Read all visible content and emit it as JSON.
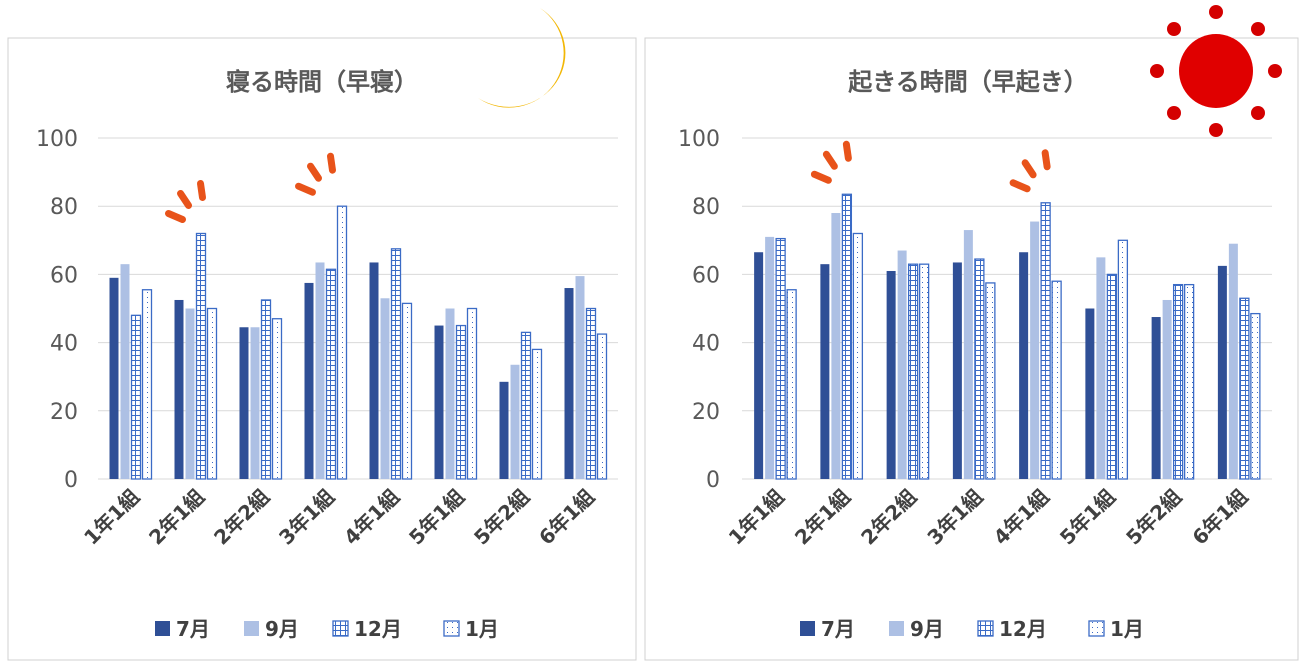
{
  "colors": {
    "jul": "#2F4F96",
    "sep": "#ADC0E4",
    "dec": "#3B6BC6",
    "jan": "#3B6BC6",
    "grid": "#D9D9D9",
    "frame": "#D0D0D0",
    "moon": "#F2B705",
    "sun": "#E00000",
    "sun_dots": "#D40000",
    "emphasis": "#E8531A"
  },
  "icons": {
    "left_decoration": "crescent-moon-icon",
    "right_decoration": "sun-icon",
    "emphasis_mark": "emphasis-dashes-icon"
  },
  "chart_data": [
    {
      "type": "bar",
      "title": "寝る時間（早寝）",
      "categories": [
        "1年1組",
        "2年1組",
        "2年2組",
        "3年1組",
        "4年1組",
        "5年1組",
        "5年2組",
        "6年1組"
      ],
      "series": [
        {
          "name": "7月",
          "values": [
            59,
            52.5,
            44.5,
            57.5,
            63.5,
            45,
            28.5,
            56
          ]
        },
        {
          "name": "9月",
          "values": [
            63,
            50,
            44.5,
            63.5,
            53,
            50,
            33.5,
            59.5
          ]
        },
        {
          "name": "12月",
          "values": [
            48,
            72,
            52.5,
            61.5,
            67.5,
            45,
            43,
            50
          ]
        },
        {
          "name": "1月",
          "values": [
            55.5,
            50,
            47,
            80,
            51.5,
            50,
            38,
            42.5
          ]
        }
      ],
      "ylim": [
        0,
        100
      ],
      "yticks": [
        0,
        20,
        40,
        60,
        80,
        100
      ],
      "grid": true,
      "legend": "bottom",
      "emphasis_categories": [
        1,
        3
      ]
    },
    {
      "type": "bar",
      "title": "起きる時間（早起き）",
      "categories": [
        "1年1組",
        "2年1組",
        "2年2組",
        "3年1組",
        "4年1組",
        "5年1組",
        "5年2組",
        "6年1組"
      ],
      "series": [
        {
          "name": "7月",
          "values": [
            66.5,
            63,
            61,
            63.5,
            66.5,
            50,
            47.5,
            62.5
          ]
        },
        {
          "name": "9月",
          "values": [
            71,
            78,
            67,
            73,
            75.5,
            65,
            52.5,
            69
          ]
        },
        {
          "name": "12月",
          "values": [
            70.5,
            83.5,
            63,
            64.5,
            81,
            60,
            57,
            53
          ]
        },
        {
          "name": "1月",
          "values": [
            55.5,
            72,
            63,
            57.5,
            58,
            70,
            57,
            48.5
          ]
        }
      ],
      "ylim": [
        0,
        100
      ],
      "yticks": [
        0,
        20,
        40,
        60,
        80,
        100
      ],
      "grid": true,
      "legend": "bottom",
      "emphasis_categories": [
        1,
        4
      ]
    }
  ]
}
